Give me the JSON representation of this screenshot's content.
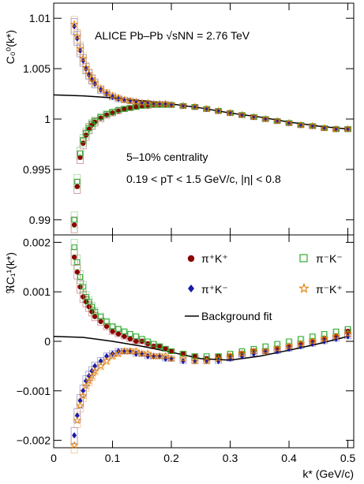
{
  "chart_data": [
    {
      "type": "scatter",
      "panel": "top",
      "ylabel": "C₀⁰(k*)",
      "ylim": [
        0.9885,
        1.0115
      ],
      "xlim": [
        0,
        0.51
      ],
      "yticks": [
        0.99,
        0.995,
        1,
        1.005,
        1.01
      ],
      "ytick_labels": [
        "0.99",
        "0.995",
        "1",
        "1.005",
        "1.01"
      ],
      "annotations": [
        "ALICE Pb–Pb √sNN = 2.76 TeV",
        "5–10% centrality",
        "0.19 < pT < 1.5 GeV/c, |η| < 0.8"
      ],
      "series": [
        {
          "name": "π⁺K⁺",
          "color": "#8b0000",
          "marker": "circle",
          "x": [
            0.035,
            0.04,
            0.045,
            0.05,
            0.055,
            0.06,
            0.065,
            0.07,
            0.08,
            0.09,
            0.1,
            0.11,
            0.12,
            0.13,
            0.14,
            0.15,
            0.16,
            0.17,
            0.18,
            0.19,
            0.2,
            0.22,
            0.24,
            0.26,
            0.28,
            0.3,
            0.32,
            0.34,
            0.36,
            0.38,
            0.4,
            0.42,
            0.44,
            0.46,
            0.48,
            0.5
          ],
          "y": [
            0.9895,
            0.9933,
            0.9962,
            0.9976,
            0.9984,
            0.999,
            0.9994,
            0.9997,
            1.0001,
            1.0004,
            1.0006,
            1.0008,
            1.001,
            1.0011,
            1.0012,
            1.0013,
            1.0013,
            1.0014,
            1.0014,
            1.0014,
            1.0014,
            1.0013,
            1.0012,
            1.001,
            1.0008,
            1.0006,
            1.0004,
            1.0002,
            1.0,
            0.9998,
            0.9996,
            0.9994,
            0.9993,
            0.9991,
            0.999,
            0.999
          ]
        },
        {
          "name": "π⁻K⁻",
          "color": "#2eaa2e",
          "marker": "open-square",
          "x": [
            0.035,
            0.04,
            0.045,
            0.05,
            0.055,
            0.06,
            0.065,
            0.07,
            0.08,
            0.09,
            0.1,
            0.11,
            0.12,
            0.13,
            0.14,
            0.15,
            0.16,
            0.17,
            0.18,
            0.19,
            0.2,
            0.22,
            0.24,
            0.26,
            0.28,
            0.3,
            0.32,
            0.34,
            0.36,
            0.38,
            0.4,
            0.42,
            0.44,
            0.46,
            0.48,
            0.5
          ],
          "y": [
            0.99,
            0.9938,
            0.9966,
            0.9979,
            0.9986,
            0.9991,
            0.9995,
            0.9998,
            1.0002,
            1.0005,
            1.0007,
            1.0009,
            1.001,
            1.0011,
            1.0012,
            1.0013,
            1.0014,
            1.0014,
            1.0014,
            1.0014,
            1.0014,
            1.0013,
            1.0012,
            1.001,
            1.0008,
            1.0006,
            1.0004,
            1.0002,
            1.0,
            0.9998,
            0.9996,
            0.9994,
            0.9993,
            0.9991,
            0.999,
            0.999
          ]
        },
        {
          "name": "π⁺K⁻",
          "color": "#1a1aa8",
          "marker": "diamond",
          "x": [
            0.035,
            0.04,
            0.045,
            0.05,
            0.055,
            0.06,
            0.065,
            0.07,
            0.08,
            0.09,
            0.1,
            0.11,
            0.12,
            0.13,
            0.14,
            0.15,
            0.16,
            0.17,
            0.18,
            0.19,
            0.2,
            0.22,
            0.24,
            0.26,
            0.28,
            0.3,
            0.32,
            0.34,
            0.36,
            0.38,
            0.4,
            0.42,
            0.44,
            0.46,
            0.48,
            0.5
          ],
          "y": [
            1.0092,
            1.008,
            1.0068,
            1.0058,
            1.005,
            1.0044,
            1.0039,
            1.0035,
            1.0029,
            1.0025,
            1.0022,
            1.002,
            1.0019,
            1.0018,
            1.0017,
            1.0016,
            1.0016,
            1.0015,
            1.0015,
            1.0015,
            1.0014,
            1.0013,
            1.0012,
            1.001,
            1.0008,
            1.0006,
            1.0004,
            1.0002,
            1.0,
            0.9998,
            0.9996,
            0.9994,
            0.9993,
            0.9991,
            0.999,
            0.999
          ]
        },
        {
          "name": "π⁻K⁺",
          "color": "#e07b00",
          "marker": "open-star",
          "x": [
            0.035,
            0.04,
            0.045,
            0.05,
            0.055,
            0.06,
            0.065,
            0.07,
            0.08,
            0.09,
            0.1,
            0.11,
            0.12,
            0.13,
            0.14,
            0.15,
            0.16,
            0.17,
            0.18,
            0.19,
            0.2,
            0.22,
            0.24,
            0.26,
            0.28,
            0.3,
            0.32,
            0.34,
            0.36,
            0.38,
            0.4,
            0.42,
            0.44,
            0.46,
            0.48,
            0.5
          ],
          "y": [
            1.0094,
            1.0082,
            1.007,
            1.006,
            1.0051,
            1.0045,
            1.004,
            1.0036,
            1.003,
            1.0026,
            1.0023,
            1.0021,
            1.0019,
            1.0018,
            1.0017,
            1.0016,
            1.0016,
            1.0015,
            1.0015,
            1.0015,
            1.0014,
            1.0013,
            1.0012,
            1.001,
            1.0008,
            1.0006,
            1.0004,
            1.0002,
            1.0,
            0.9998,
            0.9996,
            0.9994,
            0.9993,
            0.9991,
            0.999,
            0.999
          ]
        }
      ],
      "background_fit": {
        "name": "Background fit",
        "color": "#000000",
        "x": [
          0.0,
          0.05,
          0.1,
          0.15,
          0.2,
          0.25,
          0.3,
          0.35,
          0.4,
          0.45,
          0.5
        ],
        "y": [
          1.0024,
          1.0023,
          1.0021,
          1.0018,
          1.0015,
          1.0011,
          1.0006,
          1.0002,
          0.9997,
          0.9993,
          0.999
        ]
      }
    },
    {
      "type": "scatter",
      "panel": "bottom",
      "ylabel": "ℜC₁¹(k*)",
      "xlabel": "k* (GeV/c)",
      "ylim": [
        -0.00215,
        0.00215
      ],
      "xlim": [
        0,
        0.51
      ],
      "yticks": [
        -0.002,
        -0.001,
        0,
        0.001,
        0.002
      ],
      "ytick_labels": [
        "−0.002",
        "−0.001",
        "0",
        "0.001",
        "0.002"
      ],
      "xticks": [
        0,
        0.1,
        0.2,
        0.3,
        0.4,
        0.5
      ],
      "xtick_labels": [
        "0",
        "0.1",
        "0.2",
        "0.3",
        "0.4",
        "0.5"
      ],
      "legend_position": "top-right",
      "series": [
        {
          "name": "π⁺K⁺",
          "color": "#8b0000",
          "marker": "circle",
          "x": [
            0.035,
            0.04,
            0.045,
            0.05,
            0.055,
            0.06,
            0.065,
            0.07,
            0.08,
            0.09,
            0.1,
            0.11,
            0.12,
            0.13,
            0.14,
            0.15,
            0.16,
            0.17,
            0.18,
            0.19,
            0.2,
            0.22,
            0.24,
            0.26,
            0.28,
            0.3,
            0.32,
            0.34,
            0.36,
            0.38,
            0.4,
            0.42,
            0.44,
            0.46,
            0.48,
            0.5
          ],
          "y": [
            0.0017,
            0.0014,
            0.0011,
            0.0009,
            0.0008,
            0.0007,
            0.0006,
            0.0005,
            0.0004,
            0.0003,
            0.0002,
            0.00015,
            0.0001,
            5e-05,
            0.0,
            0.0,
            -5e-05,
            -0.0001,
            -0.0001,
            -0.00015,
            -0.0002,
            -0.00025,
            -0.0003,
            -0.00035,
            -0.0003,
            -0.0003,
            -0.00025,
            -0.0002,
            -0.0002,
            -0.00015,
            -0.0001,
            -5e-05,
            0.0,
            5e-05,
            0.0001,
            0.0002
          ]
        },
        {
          "name": "π⁻K⁻",
          "color": "#2eaa2e",
          "marker": "open-square",
          "x": [
            0.035,
            0.04,
            0.045,
            0.05,
            0.055,
            0.06,
            0.065,
            0.07,
            0.08,
            0.09,
            0.1,
            0.11,
            0.12,
            0.13,
            0.14,
            0.15,
            0.16,
            0.17,
            0.18,
            0.19,
            0.2,
            0.22,
            0.24,
            0.26,
            0.28,
            0.3,
            0.32,
            0.34,
            0.36,
            0.38,
            0.4,
            0.42,
            0.44,
            0.46,
            0.48,
            0.5
          ],
          "y": [
            0.0019,
            0.0016,
            0.0013,
            0.0011,
            0.0009,
            0.0008,
            0.0007,
            0.0006,
            0.0005,
            0.0004,
            0.0003,
            0.00025,
            0.0002,
            0.00015,
            0.0001,
            5e-05,
            0.0,
            -5e-05,
            -0.0001,
            -0.00015,
            -0.0002,
            -0.00025,
            -0.0003,
            -0.0003,
            -0.0003,
            -0.00025,
            -0.0002,
            -0.00015,
            -0.0001,
            -5e-05,
            0.0,
            5e-05,
            0.0001,
            0.00015,
            0.0002,
            0.00025
          ]
        },
        {
          "name": "π⁺K⁻",
          "color": "#1a1aa8",
          "marker": "diamond",
          "x": [
            0.035,
            0.04,
            0.045,
            0.05,
            0.055,
            0.06,
            0.065,
            0.07,
            0.08,
            0.09,
            0.1,
            0.11,
            0.12,
            0.13,
            0.14,
            0.15,
            0.16,
            0.17,
            0.18,
            0.19,
            0.2,
            0.22,
            0.24,
            0.26,
            0.28,
            0.3,
            0.32,
            0.34,
            0.36,
            0.38,
            0.4,
            0.42,
            0.44,
            0.46,
            0.48,
            0.5
          ],
          "y": [
            -0.0019,
            -0.0015,
            -0.0012,
            -0.001,
            -0.0008,
            -0.0007,
            -0.0006,
            -0.0005,
            -0.0004,
            -0.0003,
            -0.00025,
            -0.0002,
            -0.0002,
            -0.0002,
            -0.00025,
            -0.00025,
            -0.0003,
            -0.0003,
            -0.0003,
            -0.00035,
            -0.00035,
            -0.0004,
            -0.0004,
            -0.0004,
            -0.0004,
            -0.00035,
            -0.0003,
            -0.00025,
            -0.0002,
            -0.0002,
            -0.00015,
            -0.0001,
            -5e-05,
            0.0,
            5e-05,
            0.0001
          ]
        },
        {
          "name": "π⁻K⁺",
          "color": "#e07b00",
          "marker": "open-star",
          "x": [
            0.035,
            0.04,
            0.045,
            0.05,
            0.055,
            0.06,
            0.065,
            0.07,
            0.08,
            0.09,
            0.1,
            0.11,
            0.12,
            0.13,
            0.14,
            0.15,
            0.16,
            0.17,
            0.18,
            0.19,
            0.2,
            0.22,
            0.24,
            0.26,
            0.28,
            0.3,
            0.32,
            0.34,
            0.36,
            0.38,
            0.4,
            0.42,
            0.44,
            0.46,
            0.48,
            0.5
          ],
          "y": [
            -0.0021,
            -0.0016,
            -0.0013,
            -0.0011,
            -0.0009,
            -0.0008,
            -0.0007,
            -0.0006,
            -0.0005,
            -0.0004,
            -0.0003,
            -0.00025,
            -0.0002,
            -0.0002,
            -0.0002,
            -0.00025,
            -0.00025,
            -0.0003,
            -0.0003,
            -0.0003,
            -0.00035,
            -0.00035,
            -0.0004,
            -0.0004,
            -0.00035,
            -0.0003,
            -0.00025,
            -0.0002,
            -0.0002,
            -0.00015,
            -0.0001,
            -5e-05,
            0.0,
            5e-05,
            0.0001,
            0.00015
          ]
        }
      ],
      "background_fit": {
        "name": "Background fit",
        "color": "#000000",
        "x": [
          0.0,
          0.05,
          0.1,
          0.15,
          0.2,
          0.25,
          0.3,
          0.35,
          0.4,
          0.45,
          0.5
        ],
        "y": [
          0.0001,
          8e-05,
          0.0,
          -0.0001,
          -0.00022,
          -0.00035,
          -0.00038,
          -0.0003,
          -0.00018,
          -5e-05,
          0.0001
        ]
      }
    }
  ]
}
